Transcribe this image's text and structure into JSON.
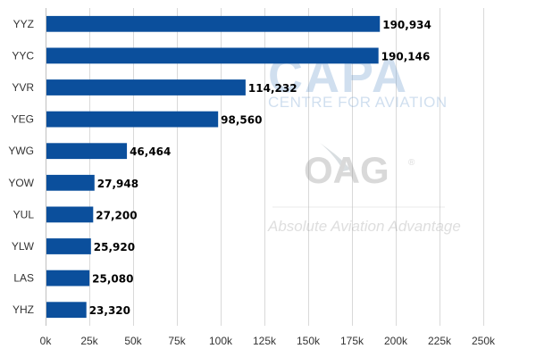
{
  "chart_data": {
    "type": "bar",
    "orientation": "horizontal",
    "categories": [
      "YYZ",
      "YYC",
      "YVR",
      "YEG",
      "YWG",
      "YOW",
      "YUL",
      "YLW",
      "LAS",
      "YHZ"
    ],
    "values": [
      190934,
      190146,
      114232,
      98560,
      46464,
      27948,
      27200,
      25920,
      25080,
      23320
    ],
    "data_labels": [
      "190,934",
      "190,146",
      "114,232",
      "98,560",
      "46,464",
      "27,948",
      "27,200",
      "25,920",
      "25,080",
      "23,320"
    ],
    "title": "",
    "xlabel": "",
    "ylabel": "",
    "xlim": [
      0,
      275000
    ],
    "x_ticks": [
      0,
      25000,
      50000,
      75000,
      100000,
      125000,
      150000,
      175000,
      200000,
      225000,
      250000
    ],
    "x_tick_labels": [
      "0k",
      "25k",
      "50k",
      "75k",
      "100k",
      "125k",
      "150k",
      "175k",
      "200k",
      "225k",
      "250k"
    ],
    "grid": "vertical",
    "legend": "none",
    "bar_color": "#0b4f9c"
  },
  "watermarks": {
    "capa_logo": "CAPA",
    "capa_subtitle": "CENTRE FOR AVIATION",
    "oag_logo": "OAG",
    "oag_registered": "®",
    "oag_tagline": "Absolute Aviation Advantage"
  }
}
